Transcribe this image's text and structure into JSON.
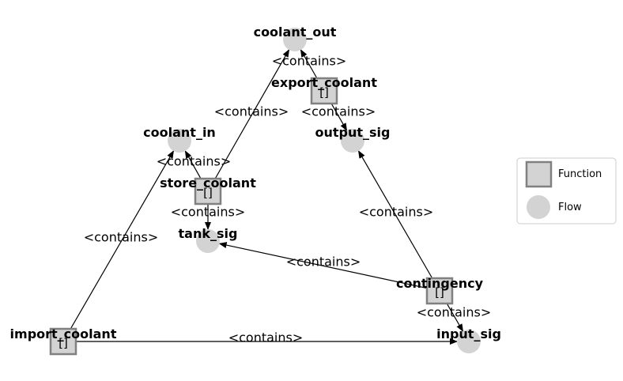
{
  "colors": {
    "node_fill": "#d3d3d3",
    "function_stroke": "#808080",
    "edge": "#000000",
    "legend_border": "#cccccc"
  },
  "nodes": [
    {
      "id": "coolant_out",
      "label": "coolant_out",
      "type": "flow"
    },
    {
      "id": "export_coolant",
      "label": "export_coolant",
      "type": "function",
      "sub": "[]"
    },
    {
      "id": "output_sig",
      "label": "output_sig",
      "type": "flow"
    },
    {
      "id": "coolant_in",
      "label": "coolant_in",
      "type": "flow"
    },
    {
      "id": "store_coolant",
      "label": "store_coolant",
      "type": "function",
      "sub": "[]"
    },
    {
      "id": "tank_sig",
      "label": "tank_sig",
      "type": "flow"
    },
    {
      "id": "contingency",
      "label": "contingency",
      "type": "function",
      "sub": "[]"
    },
    {
      "id": "import_coolant",
      "label": "import_coolant",
      "type": "function",
      "sub": "[]"
    },
    {
      "id": "input_sig",
      "label": "input_sig",
      "type": "flow"
    }
  ],
  "edges": [
    {
      "from": "export_coolant",
      "to": "coolant_out",
      "label": "<contains>"
    },
    {
      "from": "store_coolant",
      "to": "coolant_out",
      "label": "<contains>"
    },
    {
      "from": "export_coolant",
      "to": "output_sig",
      "label": "<contains>"
    },
    {
      "from": "store_coolant",
      "to": "coolant_in",
      "label": "<contains>"
    },
    {
      "from": "store_coolant",
      "to": "tank_sig",
      "label": "<contains>"
    },
    {
      "from": "import_coolant",
      "to": "coolant_in",
      "label": "<contains>"
    },
    {
      "from": "contingency",
      "to": "output_sig",
      "label": "<contains>"
    },
    {
      "from": "contingency",
      "to": "tank_sig",
      "label": "<contains>"
    },
    {
      "from": "contingency",
      "to": "input_sig",
      "label": "<contains>"
    },
    {
      "from": "import_coolant",
      "to": "input_sig",
      "label": "<contains>"
    }
  ],
  "legend": {
    "function_label": "Function",
    "flow_label": "Flow"
  }
}
